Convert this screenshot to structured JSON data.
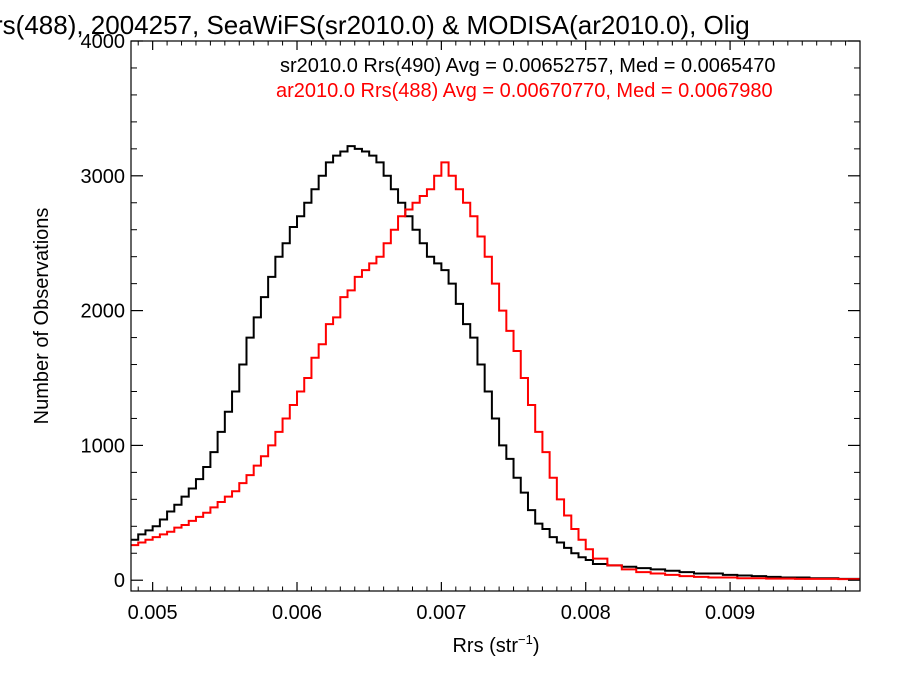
{
  "chart_data": {
    "type": "line",
    "step": true,
    "title": "rs(488), 2004257, SeaWiFS(sr2010.0) & MODISA(ar2010.0), Olig",
    "xlabel_main": "Rrs (str",
    "xlabel_sup": "−1",
    "xlabel_end": ")",
    "ylabel": "Number of Observations",
    "xlim": [
      0.00485,
      0.0099
    ],
    "ylim": [
      -80,
      4000
    ],
    "xticks": [
      {
        "value": 0.005,
        "label": "0.005"
      },
      {
        "value": 0.006,
        "label": "0.006"
      },
      {
        "value": 0.007,
        "label": "0.007"
      },
      {
        "value": 0.008,
        "label": "0.008"
      },
      {
        "value": 0.009,
        "label": "0.009"
      }
    ],
    "yticks": [
      {
        "value": 0,
        "label": "0"
      },
      {
        "value": 1000,
        "label": "1000"
      },
      {
        "value": 2000,
        "label": "2000"
      },
      {
        "value": 3000,
        "label": "3000"
      },
      {
        "value": 4000,
        "label": "4000"
      }
    ],
    "annotations": [
      {
        "text": "sr2010.0 Rrs(490) Avg = 0.00652757, Med = 0.0065470",
        "color": "#000000"
      },
      {
        "text": "ar2010.0 Rrs(488) Avg = 0.00670770, Med = 0.0067980",
        "color": "#ff0000"
      }
    ],
    "series": [
      {
        "color": "#000000",
        "x": [
          0.00485,
          0.0049,
          0.00495,
          0.005,
          0.00505,
          0.0051,
          0.00515,
          0.0052,
          0.00525,
          0.0053,
          0.00535,
          0.0054,
          0.00545,
          0.0055,
          0.00555,
          0.0056,
          0.00565,
          0.0057,
          0.00575,
          0.0058,
          0.00585,
          0.0059,
          0.00595,
          0.006,
          0.00605,
          0.0061,
          0.00615,
          0.0062,
          0.00625,
          0.0063,
          0.00635,
          0.0064,
          0.00645,
          0.0065,
          0.00655,
          0.0066,
          0.00665,
          0.0067,
          0.00675,
          0.0068,
          0.00685,
          0.0069,
          0.00695,
          0.007,
          0.00705,
          0.0071,
          0.00715,
          0.0072,
          0.00725,
          0.0073,
          0.00735,
          0.0074,
          0.00745,
          0.0075,
          0.00755,
          0.0076,
          0.00765,
          0.0077,
          0.00775,
          0.0078,
          0.00785,
          0.0079,
          0.00795,
          0.008,
          0.0081,
          0.0082,
          0.0083,
          0.0084,
          0.0085,
          0.0086,
          0.0087,
          0.0088,
          0.0089,
          0.009,
          0.0091,
          0.0092,
          0.0093,
          0.0094,
          0.0095,
          0.0096,
          0.0097,
          0.0098,
          0.0099
        ],
        "y": [
          300,
          340,
          370,
          400,
          450,
          510,
          560,
          620,
          680,
          750,
          840,
          950,
          1100,
          1250,
          1400,
          1600,
          1800,
          1950,
          2100,
          2250,
          2400,
          2500,
          2620,
          2700,
          2800,
          2900,
          3000,
          3100,
          3150,
          3180,
          3220,
          3200,
          3180,
          3150,
          3100,
          3000,
          2900,
          2800,
          2700,
          2600,
          2500,
          2400,
          2350,
          2300,
          2200,
          2050,
          1900,
          1800,
          1600,
          1400,
          1200,
          1000,
          900,
          760,
          650,
          520,
          420,
          380,
          320,
          280,
          240,
          200,
          170,
          150,
          120,
          110,
          100,
          90,
          80,
          70,
          60,
          50,
          50,
          40,
          35,
          30,
          25,
          20,
          20,
          15,
          15,
          10,
          10
        ]
      },
      {
        "color": "#ff0000",
        "x": [
          0.00485,
          0.0049,
          0.00495,
          0.005,
          0.00505,
          0.0051,
          0.00515,
          0.0052,
          0.00525,
          0.0053,
          0.00535,
          0.0054,
          0.00545,
          0.0055,
          0.00555,
          0.0056,
          0.00565,
          0.0057,
          0.00575,
          0.0058,
          0.00585,
          0.0059,
          0.00595,
          0.006,
          0.00605,
          0.0061,
          0.00615,
          0.0062,
          0.00625,
          0.0063,
          0.00635,
          0.0064,
          0.00645,
          0.0065,
          0.00655,
          0.0066,
          0.00665,
          0.0067,
          0.00675,
          0.0068,
          0.00685,
          0.0069,
          0.00695,
          0.007,
          0.00705,
          0.0071,
          0.00715,
          0.0072,
          0.00725,
          0.0073,
          0.00735,
          0.0074,
          0.00745,
          0.0075,
          0.00755,
          0.0076,
          0.00765,
          0.0077,
          0.00775,
          0.0078,
          0.00785,
          0.0079,
          0.00795,
          0.008,
          0.0081,
          0.0082,
          0.0083,
          0.0084,
          0.0085,
          0.0086,
          0.0087,
          0.0088,
          0.0089,
          0.009,
          0.0091,
          0.0092,
          0.0093,
          0.0094,
          0.0095,
          0.0096,
          0.0097,
          0.0098,
          0.0099
        ],
        "y": [
          260,
          280,
          300,
          320,
          340,
          360,
          390,
          410,
          440,
          470,
          500,
          540,
          580,
          620,
          660,
          720,
          780,
          850,
          920,
          1000,
          1100,
          1200,
          1300,
          1400,
          1500,
          1650,
          1750,
          1900,
          1950,
          2100,
          2150,
          2250,
          2300,
          2350,
          2400,
          2500,
          2600,
          2700,
          2750,
          2800,
          2850,
          2900,
          3000,
          3100,
          3000,
          2900,
          2800,
          2700,
          2550,
          2400,
          2200,
          2000,
          1850,
          1700,
          1500,
          1300,
          1100,
          950,
          760,
          600,
          480,
          380,
          300,
          230,
          160,
          110,
          80,
          60,
          50,
          40,
          30,
          25,
          20,
          20,
          15,
          15,
          12,
          12,
          10,
          10,
          10,
          8,
          8
        ]
      }
    ]
  }
}
